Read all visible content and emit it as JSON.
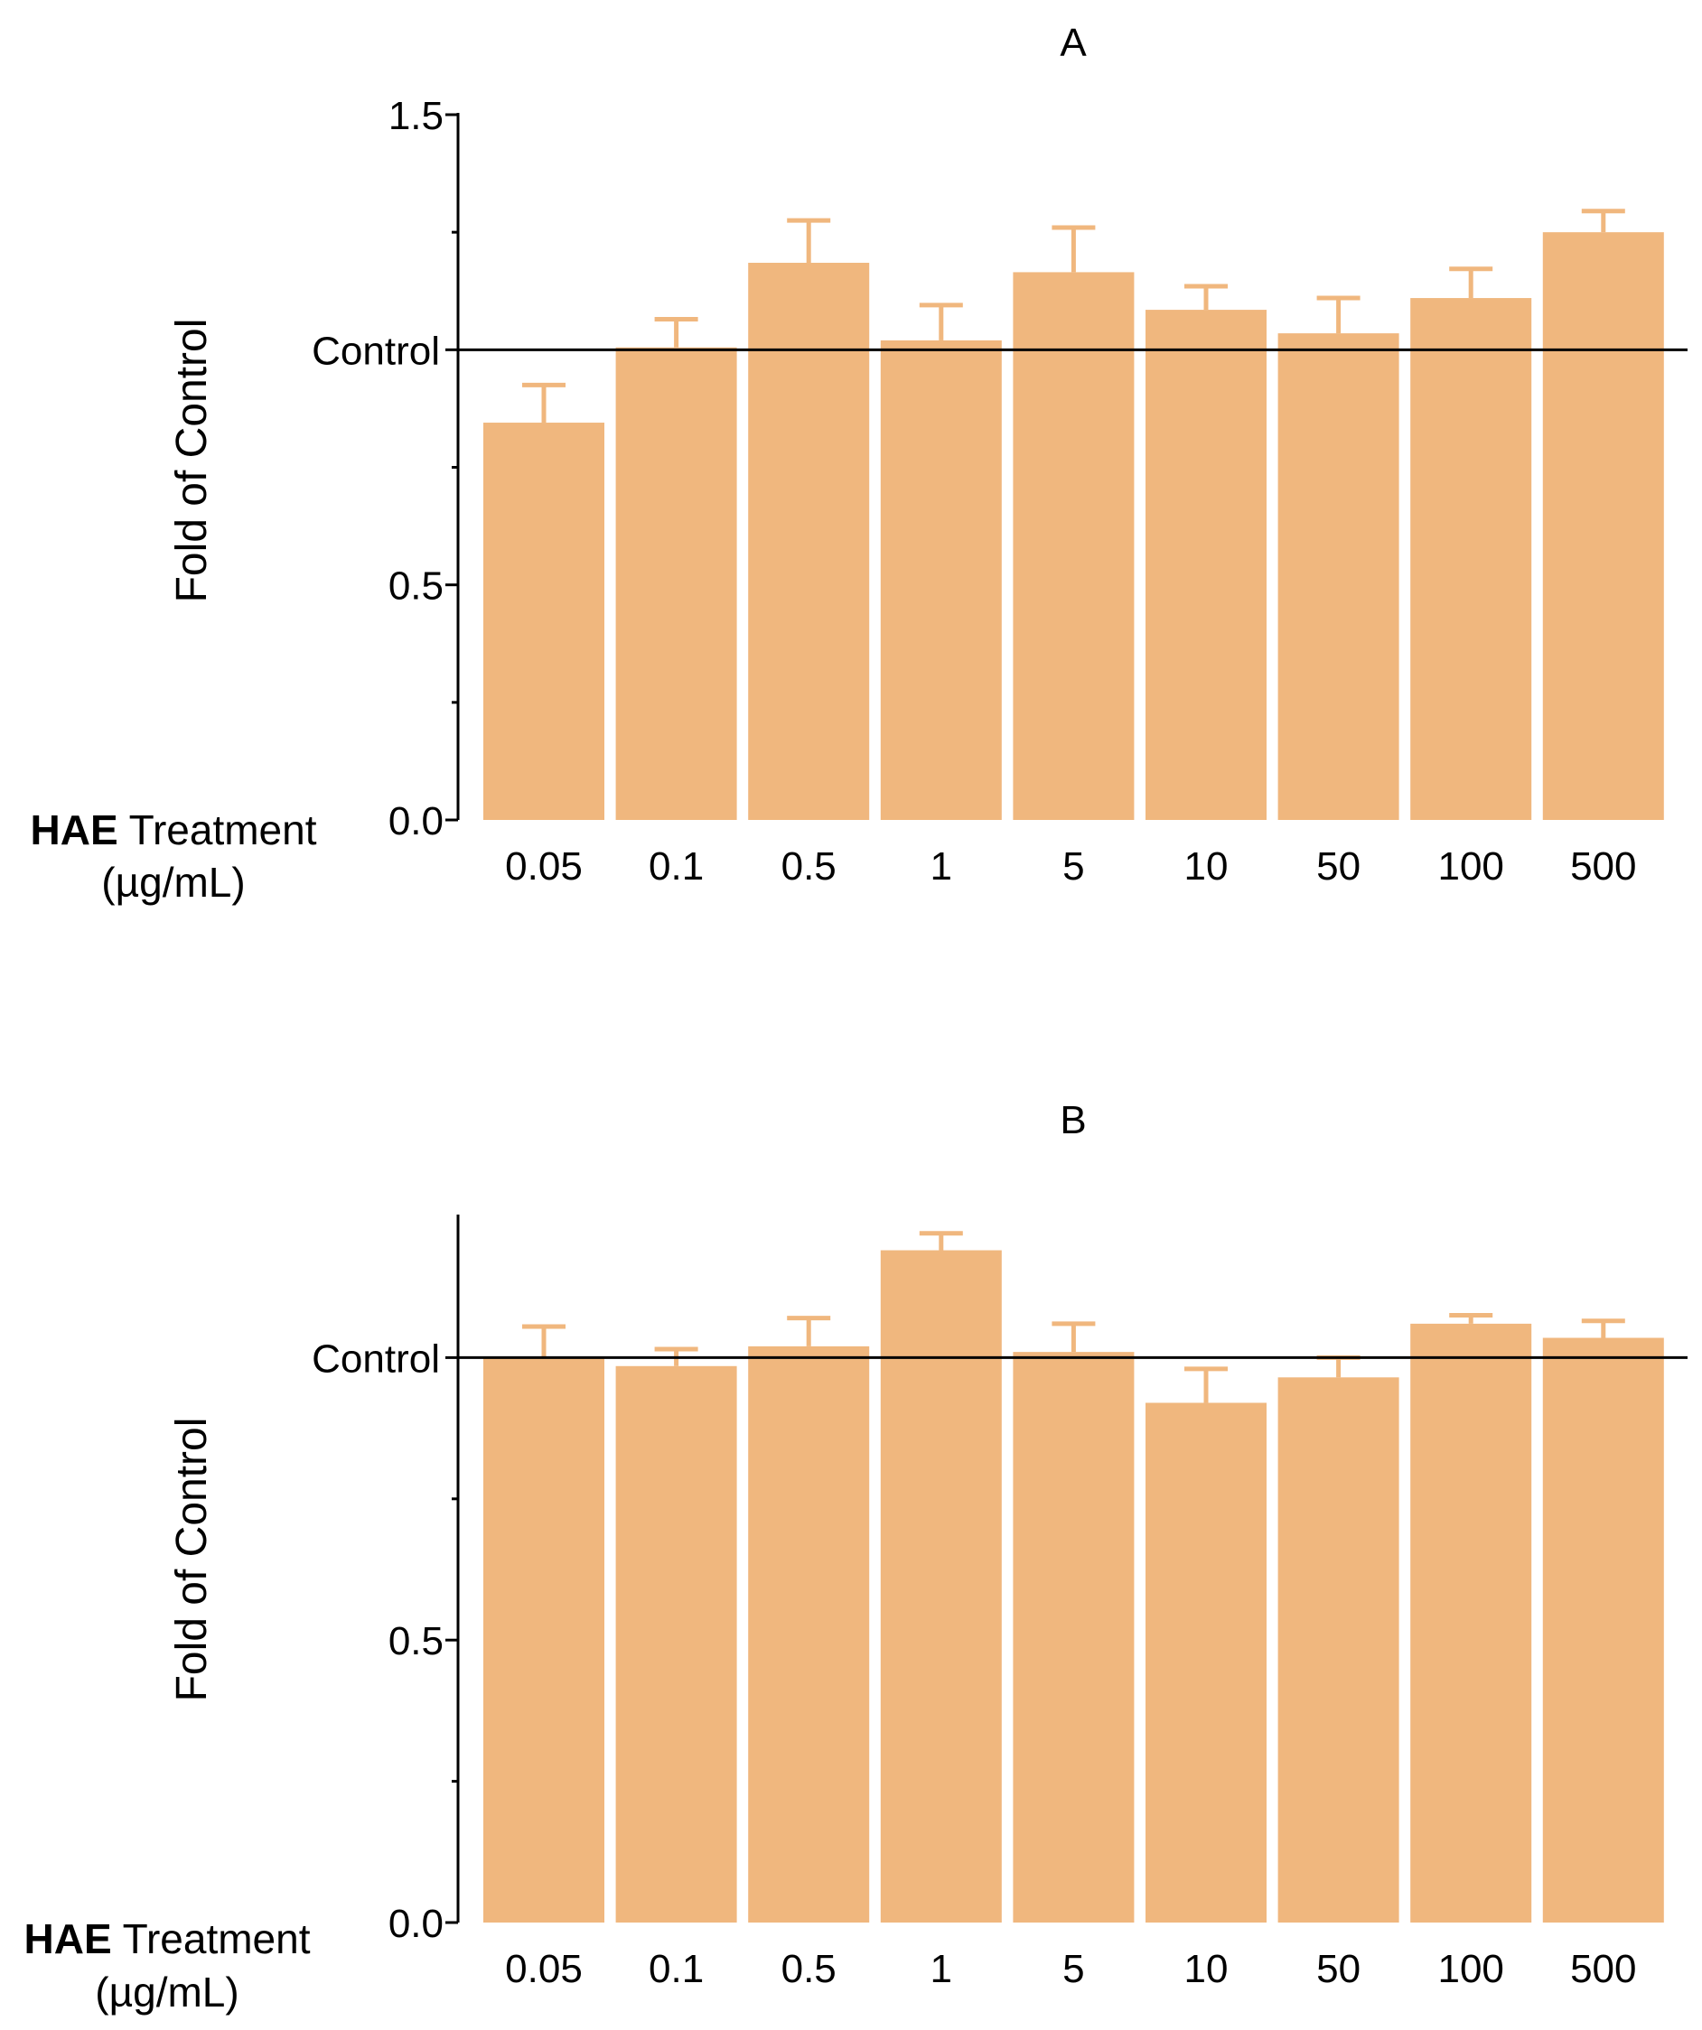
{
  "chart_data": [
    {
      "type": "bar",
      "title": "A",
      "ylabel": "Fold of Control",
      "xlabel_bold": "HAE",
      "xlabel_rest": "Treatment",
      "xlabel_units": "(µg/mL)",
      "reference_label": "Control",
      "reference_value": 1.0,
      "ylim": [
        0,
        1.5
      ],
      "yticks": [
        "0.0",
        "0.5",
        "1.5"
      ],
      "categories": [
        "0.05",
        "0.1",
        "0.5",
        "1",
        "5",
        "10",
        "50",
        "100",
        "500"
      ],
      "values": [
        0.845,
        1.005,
        1.185,
        1.02,
        1.165,
        1.085,
        1.035,
        1.11,
        1.25
      ],
      "errors": [
        0.08,
        0.06,
        0.09,
        0.075,
        0.095,
        0.05,
        0.075,
        0.062,
        0.045
      ],
      "bar_color": "#F0B77E",
      "axis_color": "#000000"
    },
    {
      "type": "bar",
      "title": "B",
      "ylabel": "Fold of Control",
      "xlabel_bold": "HAE",
      "xlabel_rest": "Treatment",
      "xlabel_units": "(µg/mL)",
      "reference_label": "Control",
      "reference_value": 1.0,
      "ylim": [
        0,
        1.25
      ],
      "yticks": [
        "0.0",
        "0.5"
      ],
      "categories": [
        "0.05",
        "0.1",
        "0.5",
        "1",
        "5",
        "10",
        "50",
        "100",
        "500"
      ],
      "values": [
        1.0,
        0.985,
        1.02,
        1.19,
        1.01,
        0.92,
        0.965,
        1.06,
        1.035
      ],
      "errors": [
        0.055,
        0.03,
        0.05,
        0.03,
        0.05,
        0.06,
        0.035,
        0.015,
        0.03
      ],
      "bar_color": "#F0B77E",
      "axis_color": "#000000"
    }
  ]
}
